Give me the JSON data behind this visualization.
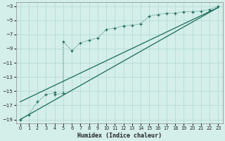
{
  "xlabel": "Humidex (Indice chaleur)",
  "bg_color": "#d4eeea",
  "grid_color": "#b0d8d2",
  "line_color": "#1a6b5a",
  "xlim": [
    -0.5,
    23.5
  ],
  "ylim": [
    -19.5,
    -2.5
  ],
  "xticks": [
    0,
    1,
    2,
    3,
    4,
    5,
    6,
    7,
    8,
    9,
    10,
    11,
    12,
    13,
    14,
    15,
    16,
    17,
    18,
    19,
    20,
    21,
    22,
    23
  ],
  "yticks": [
    -19,
    -17,
    -15,
    -13,
    -11,
    -9,
    -7,
    -5,
    -3
  ],
  "curve_x": [
    0,
    1,
    2,
    3,
    4,
    4,
    5,
    5,
    6,
    7,
    8,
    9,
    10,
    11,
    12,
    13,
    14,
    15,
    16,
    17,
    18,
    19,
    20,
    21,
    22,
    23
  ],
  "curve_y": [
    -19,
    -18.3,
    -16.5,
    -15.5,
    -15.2,
    -15.5,
    -15.3,
    -8.0,
    -9.3,
    -8.2,
    -7.8,
    -7.5,
    -6.3,
    -6.1,
    -5.8,
    -5.7,
    -5.5,
    -4.4,
    -4.2,
    -4.0,
    -4.0,
    -3.8,
    -3.8,
    -3.7,
    -3.5,
    -3.0
  ],
  "line1_x": [
    0,
    23
  ],
  "line1_y": [
    -19.0,
    -3.2
  ],
  "line2_x": [
    0,
    23
  ],
  "line2_y": [
    -16.5,
    -3.2
  ]
}
